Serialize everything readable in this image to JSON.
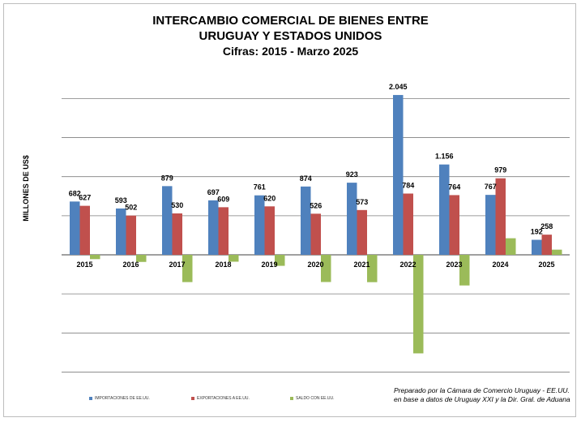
{
  "title_lines": [
    "INTERCAMBIO COMERCIAL DE BIENES ENTRE",
    "URUGUAY Y ESTADOS UNIDOS",
    "Cifras:  2015 - Marzo 2025"
  ],
  "note_lines": [
    "Preparado por la Cámara de Comercio Uruguay - EE.UU.",
    "en base  a datos de Uruguay XXI y la Dir. Gral. de Aduana"
  ],
  "colors": {
    "importaciones": "#4f81bd",
    "exportaciones": "#c0504d",
    "saldo": "#9bbb59",
    "grid": "#7f7f7f"
  },
  "chart_data": {
    "type": "bar",
    "title": "INTERCAMBIO COMERCIAL DE BIENES ENTRE URUGUAY Y ESTADOS UNIDOS — Cifras:  2015 - Marzo 2025",
    "ylabel": "MILLONES DE US$",
    "xlabel": "",
    "ylim": [
      -1500,
      2000
    ],
    "grid": true,
    "legend": "bottom",
    "categories": [
      "2015",
      "2016",
      "2017",
      "2018",
      "2019",
      "2020",
      "2021",
      "2022",
      "2023",
      "2024",
      "2025"
    ],
    "series": [
      {
        "name": "IMPORTACIONES DE EE.UU.",
        "values": [
          682,
          593,
          879,
          697,
          761,
          874,
          923,
          2045,
          1156,
          767,
          192
        ],
        "labels": [
          "682",
          "593",
          "879",
          "697",
          "761",
          "874",
          "923",
          "2.045",
          "1.156",
          "767",
          "192"
        ]
      },
      {
        "name": "EXPORTACIONES A EE.UU.",
        "values": [
          627,
          502,
          530,
          609,
          620,
          526,
          573,
          784,
          764,
          979,
          258
        ],
        "labels": [
          "627",
          "502",
          "530",
          "609",
          "620",
          "526",
          "573",
          "784",
          "764",
          "979",
          "258"
        ]
      },
      {
        "name": "SALDO CON EE.UU.",
        "values": [
          -55,
          -91,
          -349,
          -88,
          -141,
          -348,
          -350,
          -1261,
          -392,
          212,
          66
        ],
        "labels": []
      }
    ]
  }
}
